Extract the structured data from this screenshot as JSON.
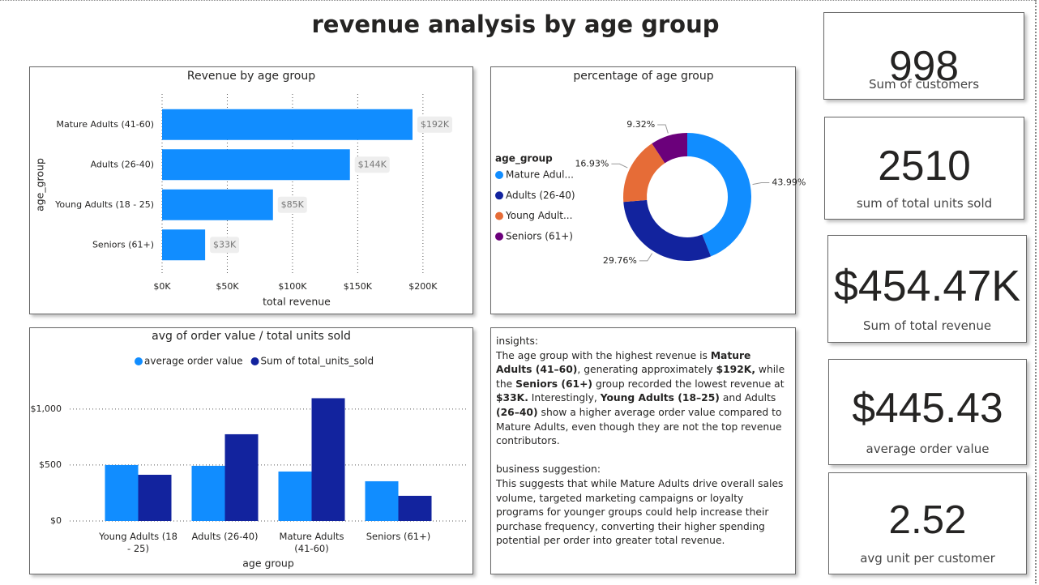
{
  "title": "revenue analysis by age group",
  "chart_data": [
    {
      "type": "hbar",
      "title": "Revenue by age group",
      "x_label": "total revenue",
      "y_label": "age_group",
      "categories": [
        "Mature Adults (41-60)",
        "Adults (26-40)",
        "Young Adults (18 - 25)",
        "Seniors (61+)"
      ],
      "values": [
        192000,
        144000,
        85000,
        33000
      ],
      "value_labels": [
        "$192K",
        "$144K",
        "$85K",
        "$33K"
      ],
      "color": "#118dff",
      "xlim": [
        0,
        215000
      ],
      "xticks": [
        {
          "value": 0,
          "label": "$0K"
        },
        {
          "value": 50000,
          "label": "$50K"
        },
        {
          "value": 100000,
          "label": "$100K"
        },
        {
          "value": 150000,
          "label": "$150K"
        },
        {
          "value": 200000,
          "label": "$200K"
        }
      ],
      "grid": true
    },
    {
      "type": "donut",
      "title": "percentage of age group",
      "legend_title": "age_group",
      "categories": [
        "Mature Adul...",
        "Adults (26-40)",
        "Young Adult...",
        "Seniors (61+)"
      ],
      "values": [
        43.99,
        29.76,
        16.93,
        9.32
      ],
      "value_labels": [
        "43.99%",
        "29.76%",
        "16.93%",
        "9.32%"
      ],
      "colors": [
        "#118dff",
        "#12239e",
        "#e66c37",
        "#6b007b"
      ],
      "legend": "left"
    },
    {
      "type": "grouped_bar",
      "title": "avg of order value / total units sold",
      "x_label": "age group",
      "categories": [
        "Young Adults (18 - 25)",
        "Adults (26-40)",
        "Mature Adults (41-60)",
        "Seniors (61+)"
      ],
      "series": [
        {
          "name": "average order value",
          "color": "#118dff",
          "values": [
            500,
            493,
            442,
            355
          ]
        },
        {
          "name": "Sum of total_units_sold",
          "color": "#12239e",
          "values": [
            413,
            775,
            1097,
            225
          ]
        }
      ],
      "ylim": [
        0,
        1180
      ],
      "yticks": [
        {
          "value": 0,
          "label": "$0"
        },
        {
          "value": 500,
          "label": "$500"
        },
        {
          "value": 1000,
          "label": "$1,000"
        }
      ],
      "grid": true,
      "legend": "top"
    }
  ],
  "insights": {
    "heading": "insights:",
    "paragraph": [
      {
        "text": "The age group with the highest revenue is ",
        "bold": false
      },
      {
        "text": "Mature Adults (41–60)",
        "bold": true
      },
      {
        "text": ", generating approximately ",
        "bold": false
      },
      {
        "text": "$192K,",
        "bold": true
      },
      {
        "text": " while the ",
        "bold": false
      },
      {
        "text": "Seniors (61+)",
        "bold": true
      },
      {
        "text": " group recorded the lowest revenue at ",
        "bold": false
      },
      {
        "text": "$33K.",
        "bold": true
      },
      {
        "text": " Interestingly, ",
        "bold": false
      },
      {
        "text": "Young Adults (18–25)",
        "bold": true
      },
      {
        "text": " and Adults ",
        "bold": false
      },
      {
        "text": "(26–40)",
        "bold": true
      },
      {
        "text": " show a higher average order value compared to Mature Adults, even though they are not the top revenue contributors.",
        "bold": false
      }
    ],
    "heading2": "business suggestion:",
    "paragraph2": "This suggests that while Mature Adults drive overall sales volume, targeted marketing campaigns or loyalty programs for younger groups could help increase their purchase frequency, converting their higher spending potential per order into greater total revenue."
  },
  "cards": [
    {
      "value": "998",
      "label": "Sum of customers"
    },
    {
      "value": "2510",
      "label": "sum of total units sold"
    },
    {
      "value": "$454.47K",
      "label": "Sum of total revenue"
    },
    {
      "value": "$445.43",
      "label": "average order value"
    },
    {
      "value": "2.52",
      "label": "avg unit per customer"
    }
  ]
}
